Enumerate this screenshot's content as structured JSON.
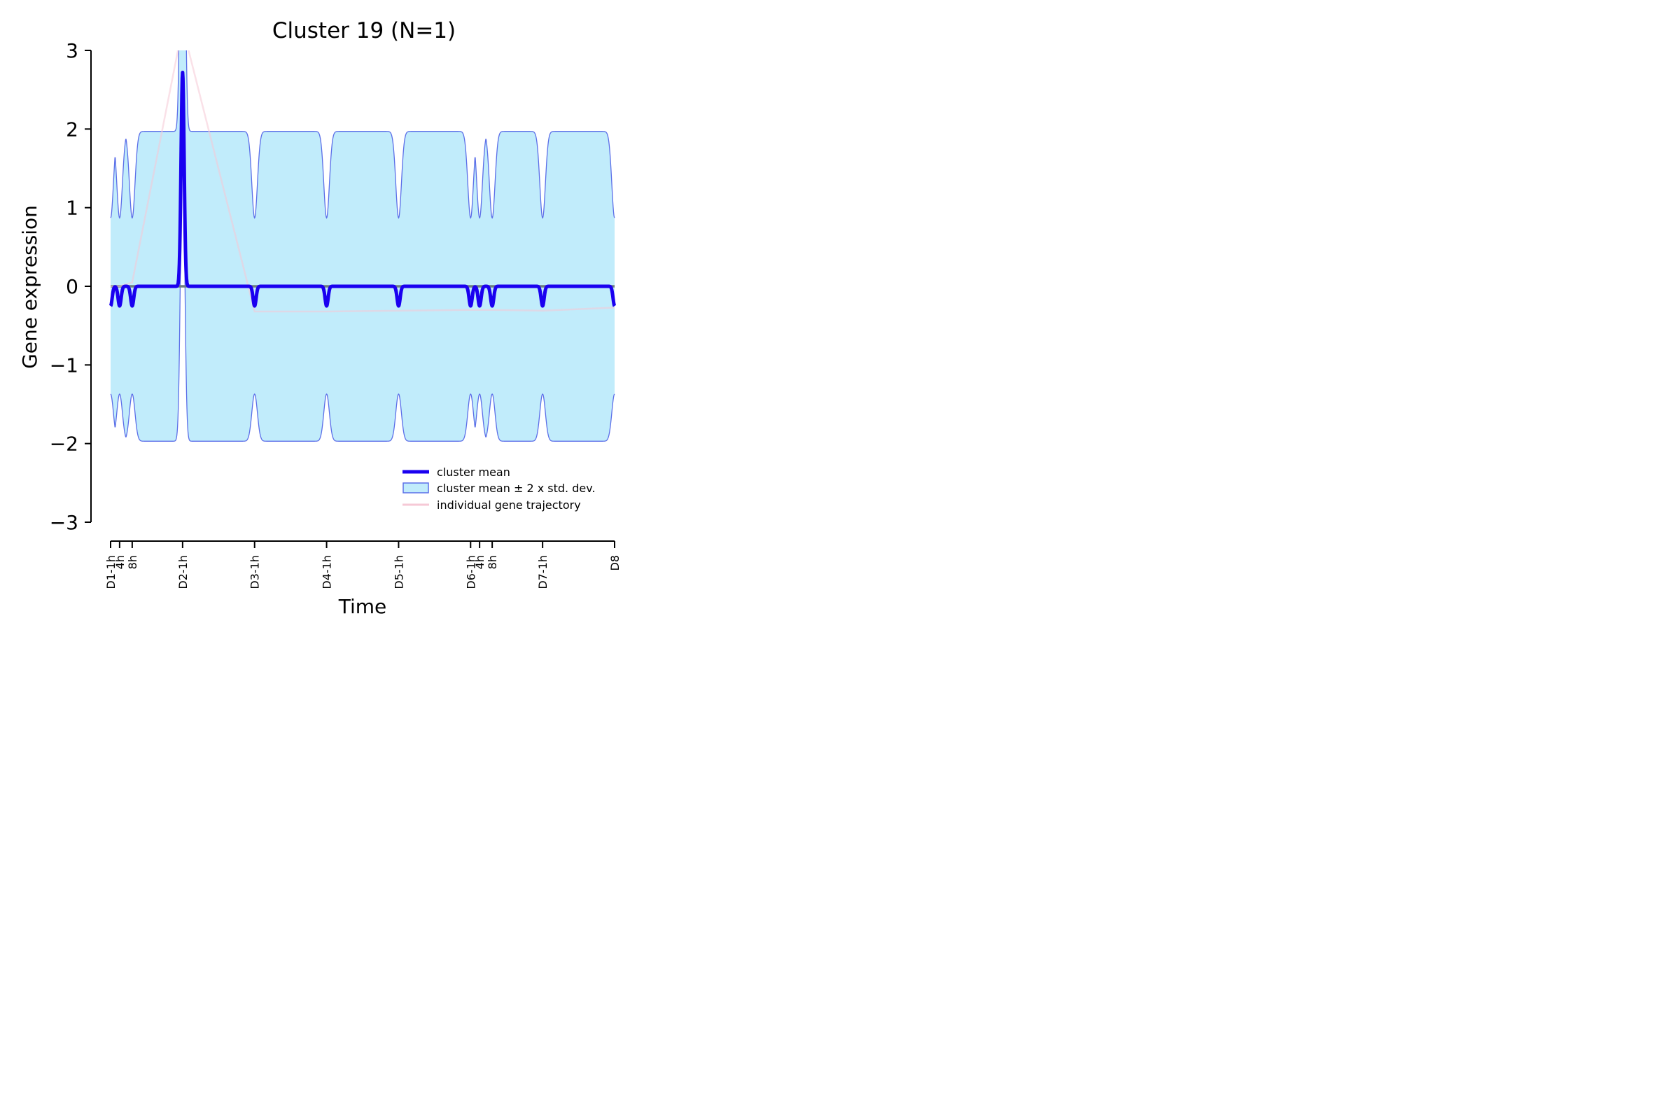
{
  "chart_data": {
    "type": "line",
    "title": "Cluster 19 (N=1)",
    "xlabel": "Time",
    "ylabel": "Gene expression",
    "ylim": [
      -3,
      3
    ],
    "yticks": [
      -3,
      -2,
      -1,
      0,
      1,
      2,
      3
    ],
    "ytick_labels": [
      "−3",
      "−2",
      "−1",
      "0",
      "1",
      "2",
      "3"
    ],
    "xticks": [
      {
        "label": "D1-1h",
        "x": 0.0
      },
      {
        "label": "4h",
        "x": 0.125
      },
      {
        "label": "8h",
        "x": 0.3
      },
      {
        "label": "D2-1h",
        "x": 1.0
      },
      {
        "label": "D3-1h",
        "x": 2.0
      },
      {
        "label": "D4-1h",
        "x": 3.0
      },
      {
        "label": "D5-1h",
        "x": 4.0
      },
      {
        "label": "D6-1h",
        "x": 5.0
      },
      {
        "label": "4h",
        "x": 5.125
      },
      {
        "label": "8h",
        "x": 5.3
      },
      {
        "label": "D7-1h",
        "x": 6.0
      },
      {
        "label": "D8",
        "x": 7.0
      }
    ],
    "xlim": [
      0,
      7
    ],
    "grid": false,
    "legend_position": "lower-right",
    "reference_line_y": 0,
    "series": [
      {
        "name": "cluster mean",
        "color": "#1a00f0",
        "x": [
          0,
          0.125,
          0.3,
          1.0,
          2.0,
          3.0,
          4.0,
          5.0,
          5.125,
          5.3,
          6.0,
          7.0
        ],
        "values": [
          -0.25,
          -0.25,
          -0.25,
          2.72,
          -0.25,
          -0.25,
          -0.25,
          -0.25,
          -0.25,
          -0.25,
          -0.25,
          -0.25
        ]
      },
      {
        "name": "cluster mean ± 2 x std. dev.",
        "fill": "#c1ecfb",
        "edge": "#5b6ee8",
        "upper_plateau": 1.97,
        "lower_plateau": -1.97,
        "upper_at_ticks": 0.87,
        "lower_at_ticks": -1.37
      },
      {
        "name": "individual gene trajectory",
        "color": "#f6c9d6",
        "x": [
          0,
          0.125,
          0.3,
          1.0,
          2.0,
          3.0,
          4.0,
          5.0,
          5.125,
          5.3,
          6.0,
          7.0
        ],
        "values": [
          0.0,
          0.0,
          0.05,
          3.3,
          -0.32,
          -0.32,
          -0.31,
          -0.3,
          -0.3,
          -0.3,
          -0.31,
          -0.27
        ]
      }
    ]
  }
}
